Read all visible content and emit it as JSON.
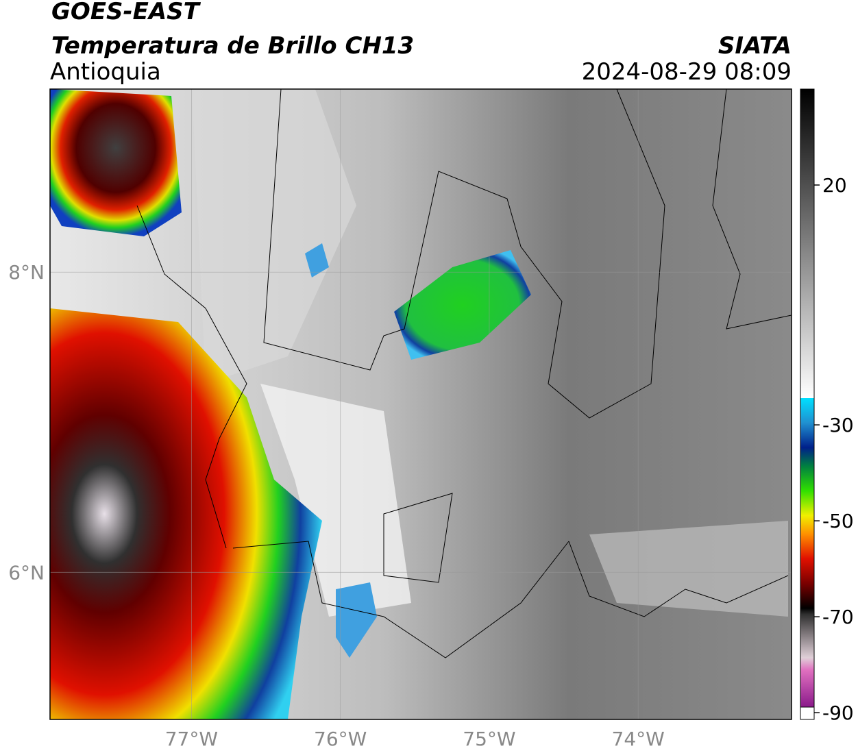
{
  "header": {
    "title": "GOES-EAST",
    "subtitle": "Temperatura de Brillo CH13",
    "region": "Antioquia",
    "source": "SIATA",
    "datetime": "2024-08-29 08:09"
  },
  "map": {
    "xlim": [
      -77.95,
      -72.97
    ],
    "ylim": [
      5.02,
      9.22
    ],
    "xticks": [
      {
        "value": -77,
        "label": "77°W"
      },
      {
        "value": -76,
        "label": "76°W"
      },
      {
        "value": -75,
        "label": "75°W"
      },
      {
        "value": -74,
        "label": "74°W"
      }
    ],
    "yticks": [
      {
        "value": 8,
        "label": "8°N"
      },
      {
        "value": 6,
        "label": "6°N"
      }
    ]
  },
  "colorbar": {
    "lim": [
      -91.4,
      40
    ],
    "ticks": [
      20,
      -30,
      -50,
      -70,
      -90
    ]
  }
}
